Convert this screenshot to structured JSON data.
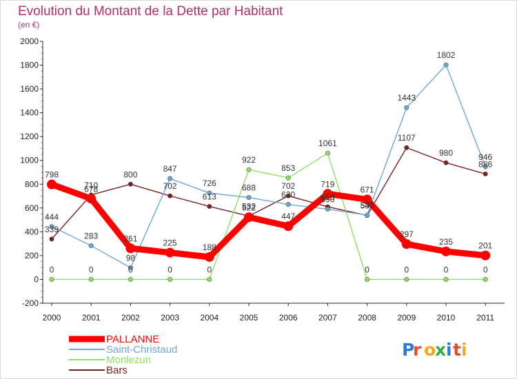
{
  "chart_data": {
    "type": "line",
    "title": "Evolution du Montant de la Dette par Habitant",
    "subtitle": "(en €)",
    "x": [
      "2000",
      "2001",
      "2002",
      "2003",
      "2004",
      "2005",
      "2006",
      "2007",
      "2008",
      "2009",
      "2010",
      "2011"
    ],
    "ylim": [
      -200,
      2000
    ],
    "yticks": [
      -200,
      0,
      200,
      400,
      600,
      800,
      1000,
      1200,
      1400,
      1600,
      1800,
      2000
    ],
    "grid": false,
    "legend_position": "bottom-left",
    "series": [
      {
        "name": "PALLANNE",
        "color": "#ff0000",
        "values": [
          798,
          678,
          261,
          225,
          188,
          522,
          447,
          719,
          671,
          297,
          235,
          201
        ]
      },
      {
        "name": "Saint-Christaud",
        "color": "#6ea6d8",
        "values": [
          444,
          283,
          98,
          847,
          726,
          688,
          630,
          590,
          540,
          1443,
          1802,
          946
        ]
      },
      {
        "name": "Monlezun",
        "color": "#8fe060",
        "values": [
          0,
          0,
          0,
          0,
          0,
          922,
          853,
          1061,
          0,
          0,
          0,
          0
        ]
      },
      {
        "name": "Bars",
        "color": "#7a1f1f",
        "values": [
          339,
          710,
          800,
          702,
          613,
          532,
          702,
          610,
          537,
          1107,
          980,
          886
        ]
      }
    ]
  },
  "logo": {
    "text": "Proxiti"
  }
}
